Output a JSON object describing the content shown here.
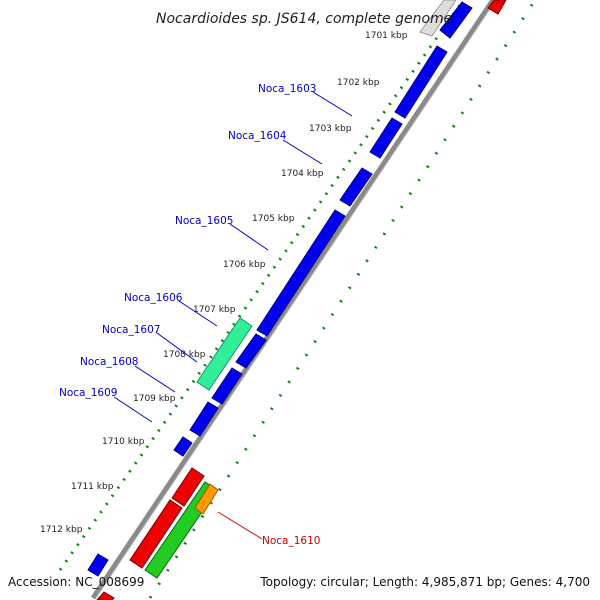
{
  "title": "Nocardioides sp. JS614, complete genome",
  "footer": {
    "accession": "Accession: NC_008699",
    "summary": "Topology: circular; Length: 4,985,871 bp; Genes: 4,700"
  },
  "ruler": {
    "ticks": [
      {
        "label": "1701 kbp",
        "kbp": 1701
      },
      {
        "label": "1702 kbp",
        "kbp": 1702
      },
      {
        "label": "1703 kbp",
        "kbp": 1703
      },
      {
        "label": "1704 kbp",
        "kbp": 1704
      },
      {
        "label": "1705 kbp",
        "kbp": 1705
      },
      {
        "label": "1706 kbp",
        "kbp": 1706
      },
      {
        "label": "1707 kbp",
        "kbp": 1707
      },
      {
        "label": "1708 kbp",
        "kbp": 1708
      },
      {
        "label": "1709 kbp",
        "kbp": 1709
      },
      {
        "label": "1710 kbp",
        "kbp": 1710
      },
      {
        "label": "1711 kbp",
        "kbp": 1711
      },
      {
        "label": "1712 kbp",
        "kbp": 1712
      }
    ]
  },
  "gene_labels": [
    {
      "name": "Noca_1603",
      "color": "#0000cc"
    },
    {
      "name": "Noca_1604",
      "color": "#0000cc"
    },
    {
      "name": "Noca_1605",
      "color": "#0000cc"
    },
    {
      "name": "Noca_1606",
      "color": "#0000cc"
    },
    {
      "name": "Noca_1607",
      "color": "#0000cc"
    },
    {
      "name": "Noca_1608",
      "color": "#0000cc"
    },
    {
      "name": "Noca_1609",
      "color": "#0000cc"
    },
    {
      "name": "Noca_1610",
      "color": "#cc0000"
    }
  ],
  "colors": {
    "cds_forward": "#0000ee",
    "cds_reverse": "#ee0000",
    "rna": "#22cc22",
    "highlight_green": "#33ee99",
    "misc": "#ff9900",
    "backbone": "#888888",
    "gc_dots": "#118811"
  }
}
